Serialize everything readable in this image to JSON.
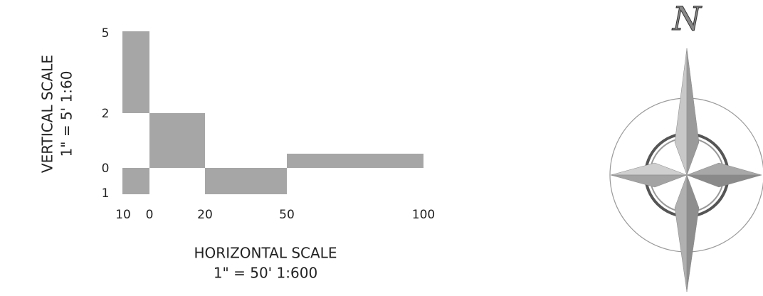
{
  "vertical_scale": {
    "title": "VERTICAL SCALE",
    "ratio": "1\" = 5'  1:60",
    "tick_labels": [
      "5",
      "2",
      "0",
      "1"
    ]
  },
  "horizontal_scale": {
    "title": "HORIZONTAL SCALE",
    "ratio": "1\" = 50'  1:600",
    "tick_labels": [
      "10",
      "0",
      "20",
      "50",
      "100"
    ]
  },
  "north_arrow": {
    "label": "N"
  }
}
